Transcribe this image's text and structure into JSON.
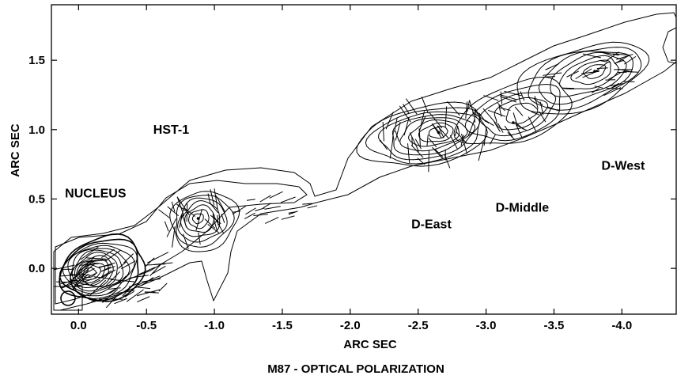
{
  "chart_data": {
    "type": "contour",
    "title": "M87 - OPTICAL POLARIZATION",
    "xlabel": "ARC SEC",
    "ylabel": "ARC SEC",
    "xlim": [
      0.2,
      -4.4
    ],
    "ylim": [
      -0.33,
      1.9
    ],
    "x_reversed": true,
    "x_ticks": [
      {
        "value": 0.0,
        "label": "0.0"
      },
      {
        "value": -0.5,
        "label": "-0.5"
      },
      {
        "value": -1.0,
        "label": "-1.0"
      },
      {
        "value": -1.5,
        "label": "-1.5"
      },
      {
        "value": -2.0,
        "label": "-2.0"
      },
      {
        "value": -2.5,
        "label": "-2.5"
      },
      {
        "value": -3.0,
        "label": "-3.0"
      },
      {
        "value": -3.5,
        "label": "-3.5"
      },
      {
        "value": -4.0,
        "label": "-4.0"
      }
    ],
    "y_ticks": [
      {
        "value": 0.0,
        "label": "0.0"
      },
      {
        "value": 0.5,
        "label": "0.5"
      },
      {
        "value": 1.0,
        "label": "1.0"
      },
      {
        "value": 1.5,
        "label": "1.5"
      }
    ],
    "annotations": [
      {
        "text": "NUCLEUS",
        "x": 0.1,
        "y": 0.51
      },
      {
        "text": "HST-1",
        "x": -0.55,
        "y": 0.97
      },
      {
        "text": "D-East",
        "x": -2.45,
        "y": 0.29
      },
      {
        "text": "D-Middle",
        "x": -3.07,
        "y": 0.41
      },
      {
        "text": "D-West",
        "x": -3.85,
        "y": 0.71
      }
    ],
    "knots": [
      {
        "name": "NUCLEUS",
        "x": -0.05,
        "y": -0.02,
        "peak_level": 12
      },
      {
        "name": "HST-1",
        "x": -0.88,
        "y": 0.36,
        "peak_level": 7
      },
      {
        "name": "D-East",
        "x": -2.65,
        "y": 0.98,
        "peak_level": 8
      },
      {
        "name": "D-Middle",
        "x": -3.2,
        "y": 1.05,
        "peak_level": 6
      },
      {
        "name": "D-West",
        "x": -3.8,
        "y": 1.42,
        "peak_level": 7
      }
    ],
    "line_color": "#000000",
    "background": "#ffffff"
  }
}
